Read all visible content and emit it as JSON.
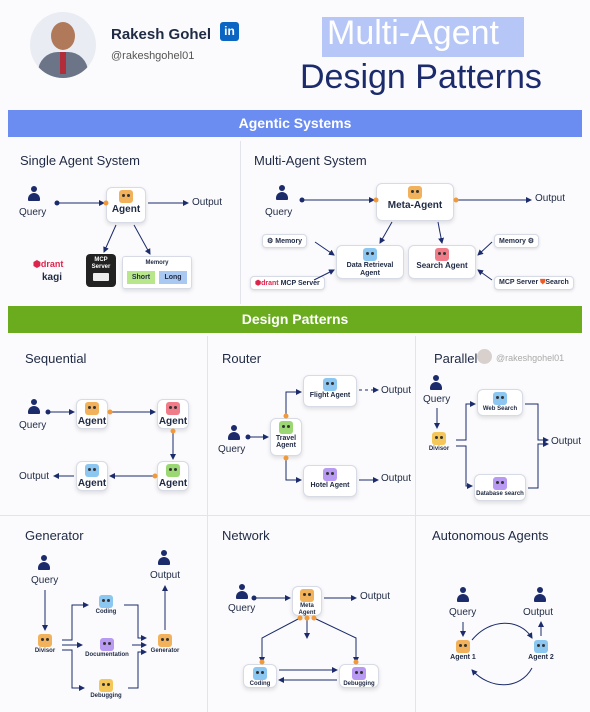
{
  "header": {
    "author_name": "Rakesh Gohel",
    "linkedin_badge": "in",
    "author_handle": "@rakeshgohel01",
    "title_line1": "Multi-Agent",
    "title_line2": "Design Patterns"
  },
  "colors": {
    "banner_blue": "#6b8cf0",
    "banner_green": "#6aac1e",
    "title_highlight": "#b6c7f7",
    "accent_orange": "#f0993a",
    "navy": "#1b2b6b"
  },
  "agentic": {
    "banner": "Agentic Systems",
    "single": {
      "title": "Single Agent System",
      "query": "Query",
      "agent": "Agent",
      "output": "Output",
      "qdrant": "drant",
      "kagi": "kagi",
      "mcp_server": "MCP Server",
      "memory": "Memory",
      "short": "Short",
      "long": "Long"
    },
    "multi": {
      "title": "Multi-Agent System",
      "query": "Query",
      "meta_agent": "Meta-Agent",
      "output": "Output",
      "memory_left": "Memory",
      "memory_right": "Memory",
      "data_retrieval": "Data Retrieval Agent",
      "search_agent": "Search Agent",
      "mcp_left": "MCP Server",
      "mcp_right": "MCP Server",
      "search_badge": "Search",
      "qdrant_small": "drant"
    }
  },
  "design": {
    "banner": "Design Patterns",
    "sequential": {
      "title": "Sequential",
      "query": "Query",
      "output": "Output",
      "agent": "Agent"
    },
    "router": {
      "title": "Router",
      "query": "Query",
      "travel_agent": "Travel Agent",
      "flight_agent": "Flight Agent",
      "hotel_agent": "Hotel Agent",
      "output": "Output"
    },
    "parallel": {
      "title": "Parallel",
      "watermark": "@rakeshgohel01",
      "query": "Query",
      "divisor": "Divisor",
      "web_search": "Web Search",
      "database_search": "Database search",
      "output": "Output"
    },
    "generator": {
      "title": "Generator",
      "query": "Query",
      "output": "Output",
      "divisor": "Divisor",
      "coding": "Coding",
      "documentation": "Documentation",
      "debugging": "Debugging",
      "generator_node": "Generator"
    },
    "network": {
      "title": "Network",
      "query": "Query",
      "meta_agent": "Meta Agent",
      "output": "Output",
      "coding": "Coding",
      "debugging": "Debugging"
    },
    "autonomous": {
      "title": "Autonomous Agents",
      "query": "Query",
      "output": "Output",
      "agent1": "Agent 1",
      "agent2": "Agent 2"
    }
  }
}
